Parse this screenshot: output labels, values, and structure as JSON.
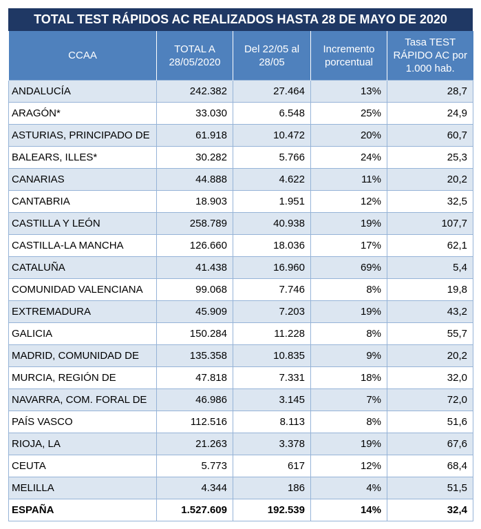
{
  "title": "TOTAL TEST RÁPIDOS AC REALIZADOS HASTA 28 DE MAYO DE 2020",
  "table": {
    "header": [
      "CCAA",
      "TOTAL A 28/05/2020",
      "Del 22/05 al 28/05",
      "Incremento porcentual",
      "Tasa TEST RÁPIDO AC por 1.000 hab."
    ],
    "rows": [
      [
        "ANDALUCÍA",
        "242.382",
        "27.464",
        "13%",
        "28,7"
      ],
      [
        "ARAGÓN*",
        "33.030",
        "6.548",
        "25%",
        "24,9"
      ],
      [
        "ASTURIAS, PRINCIPADO DE",
        "61.918",
        "10.472",
        "20%",
        "60,7"
      ],
      [
        "BALEARS, ILLES*",
        "30.282",
        "5.766",
        "24%",
        "25,3"
      ],
      [
        "CANARIAS",
        "44.888",
        "4.622",
        "11%",
        "20,2"
      ],
      [
        "CANTABRIA",
        "18.903",
        "1.951",
        "12%",
        "32,5"
      ],
      [
        "CASTILLA Y LEÓN",
        "258.789",
        "40.938",
        "19%",
        "107,7"
      ],
      [
        "CASTILLA-LA MANCHA",
        "126.660",
        "18.036",
        "17%",
        "62,1"
      ],
      [
        "CATALUÑA",
        "41.438",
        "16.960",
        "69%",
        "5,4"
      ],
      [
        "COMUNIDAD VALENCIANA",
        "99.068",
        "7.746",
        "8%",
        "19,8"
      ],
      [
        "EXTREMADURA",
        "45.909",
        "7.203",
        "19%",
        "43,2"
      ],
      [
        "GALICIA",
        "150.284",
        "11.228",
        "8%",
        "55,7"
      ],
      [
        "MADRID, COMUNIDAD DE",
        "135.358",
        "10.835",
        "9%",
        "20,2"
      ],
      [
        "MURCIA, REGIÓN DE",
        "47.818",
        "7.331",
        "18%",
        "32,0"
      ],
      [
        "NAVARRA, COM. FORAL DE",
        "46.986",
        "3.145",
        "7%",
        "72,0"
      ],
      [
        "PAÍS VASCO",
        "112.516",
        "8.113",
        "8%",
        "51,6"
      ],
      [
        "RIOJA, LA",
        "21.263",
        "3.378",
        "19%",
        "67,6"
      ],
      [
        "CEUTA",
        "5.773",
        "617",
        "12%",
        "68,4"
      ],
      [
        "MELILLA",
        "4.344",
        "186",
        "4%",
        "51,5"
      ]
    ],
    "total": [
      "ESPAÑA",
      "1.527.609",
      "192.539",
      "14%",
      "32,4"
    ]
  }
}
